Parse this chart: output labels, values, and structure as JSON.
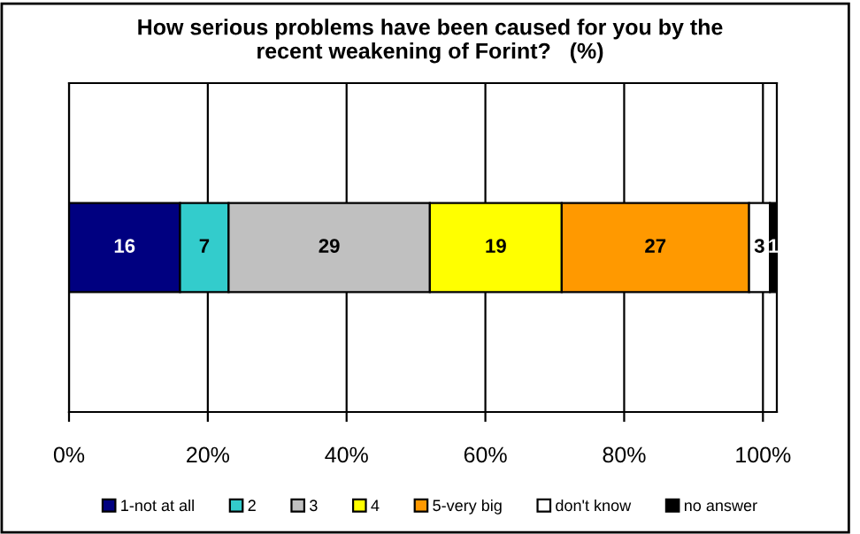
{
  "chart_data": {
    "type": "bar",
    "orientation": "horizontal",
    "stacked": true,
    "title": "How serious problems have been caused for you by the\nrecent weakening of Forint?   (%)",
    "categories": [
      null
    ],
    "series": [
      {
        "name": "1-not at all",
        "color": "#000080",
        "values": [
          16
        ]
      },
      {
        "name": "2",
        "color": "#33cccc",
        "values": [
          7
        ]
      },
      {
        "name": "3",
        "color": "#c0c0c0",
        "values": [
          29
        ]
      },
      {
        "name": "4",
        "color": "#ffff00",
        "values": [
          19
        ]
      },
      {
        "name": "5-very big",
        "color": "#ff9900",
        "values": [
          27
        ]
      },
      {
        "name": "don't know",
        "color": "#ffffff",
        "values": [
          3
        ]
      },
      {
        "name": "no answer",
        "color": "#000000",
        "values": [
          1
        ]
      }
    ],
    "xlim": [
      0,
      102
    ],
    "xticks": [
      {
        "value": 0,
        "label": "0%"
      },
      {
        "value": 20,
        "label": "20%"
      },
      {
        "value": 40,
        "label": "40%"
      },
      {
        "value": 60,
        "label": "60%"
      },
      {
        "value": 80,
        "label": "80%"
      },
      {
        "value": 100,
        "label": "100%"
      }
    ],
    "grid": "x",
    "legend": "bottom",
    "data_labels": true
  }
}
